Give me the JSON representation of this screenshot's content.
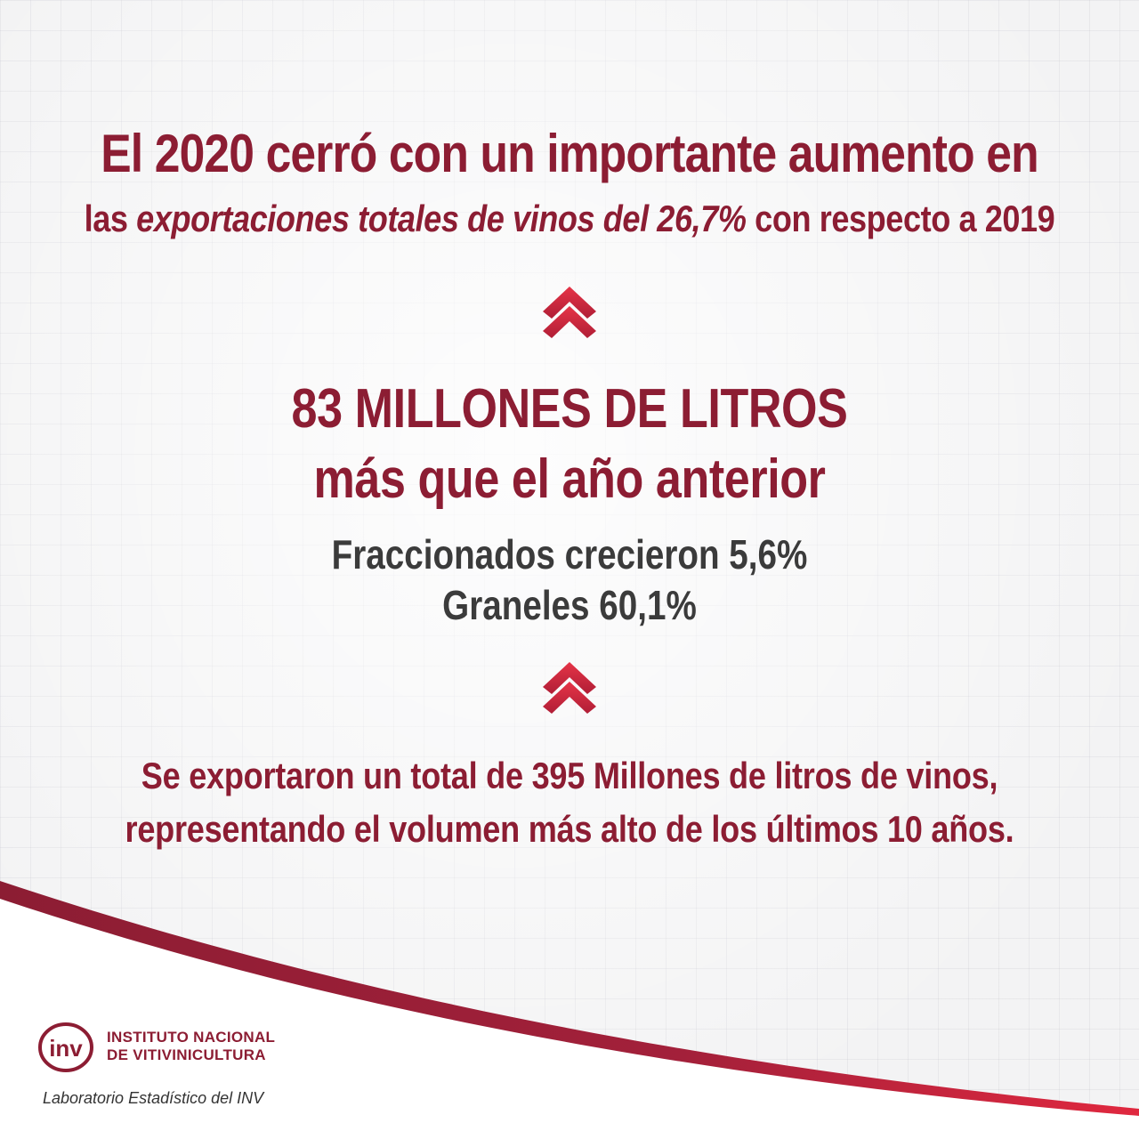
{
  "headline": {
    "line1": "El 2020 cerró con un importante aumento en",
    "line2_prefix": "las ",
    "line2_emphasis": "exportaciones totales de vinos del 26,7%",
    "line2_suffix": " con respecto a 2019"
  },
  "highlight": {
    "line1": "83 MILLONES DE LITROS",
    "line2": "más que el año anterior"
  },
  "growth": {
    "fraccionados": "Fraccionados crecieron 5,6%",
    "graneles": "Graneles 60,1%"
  },
  "summary": {
    "line1": "Se exportaron un total de 395 Millones de litros de vinos,",
    "line2": "representando el volumen más alto de los últimos 10 años."
  },
  "brand": {
    "logo_letters": "inv",
    "name_line1": "INSTITUTO NACIONAL",
    "name_line2": "DE VITIVINICULTURA",
    "footer": "Laboratorio Estadístico del INV"
  },
  "colors": {
    "brand": "#8c1d33",
    "accent": "#d2263c",
    "text_dark": "#3b3b3b"
  },
  "icons": {
    "arrow": "double-chevron-up-icon"
  }
}
